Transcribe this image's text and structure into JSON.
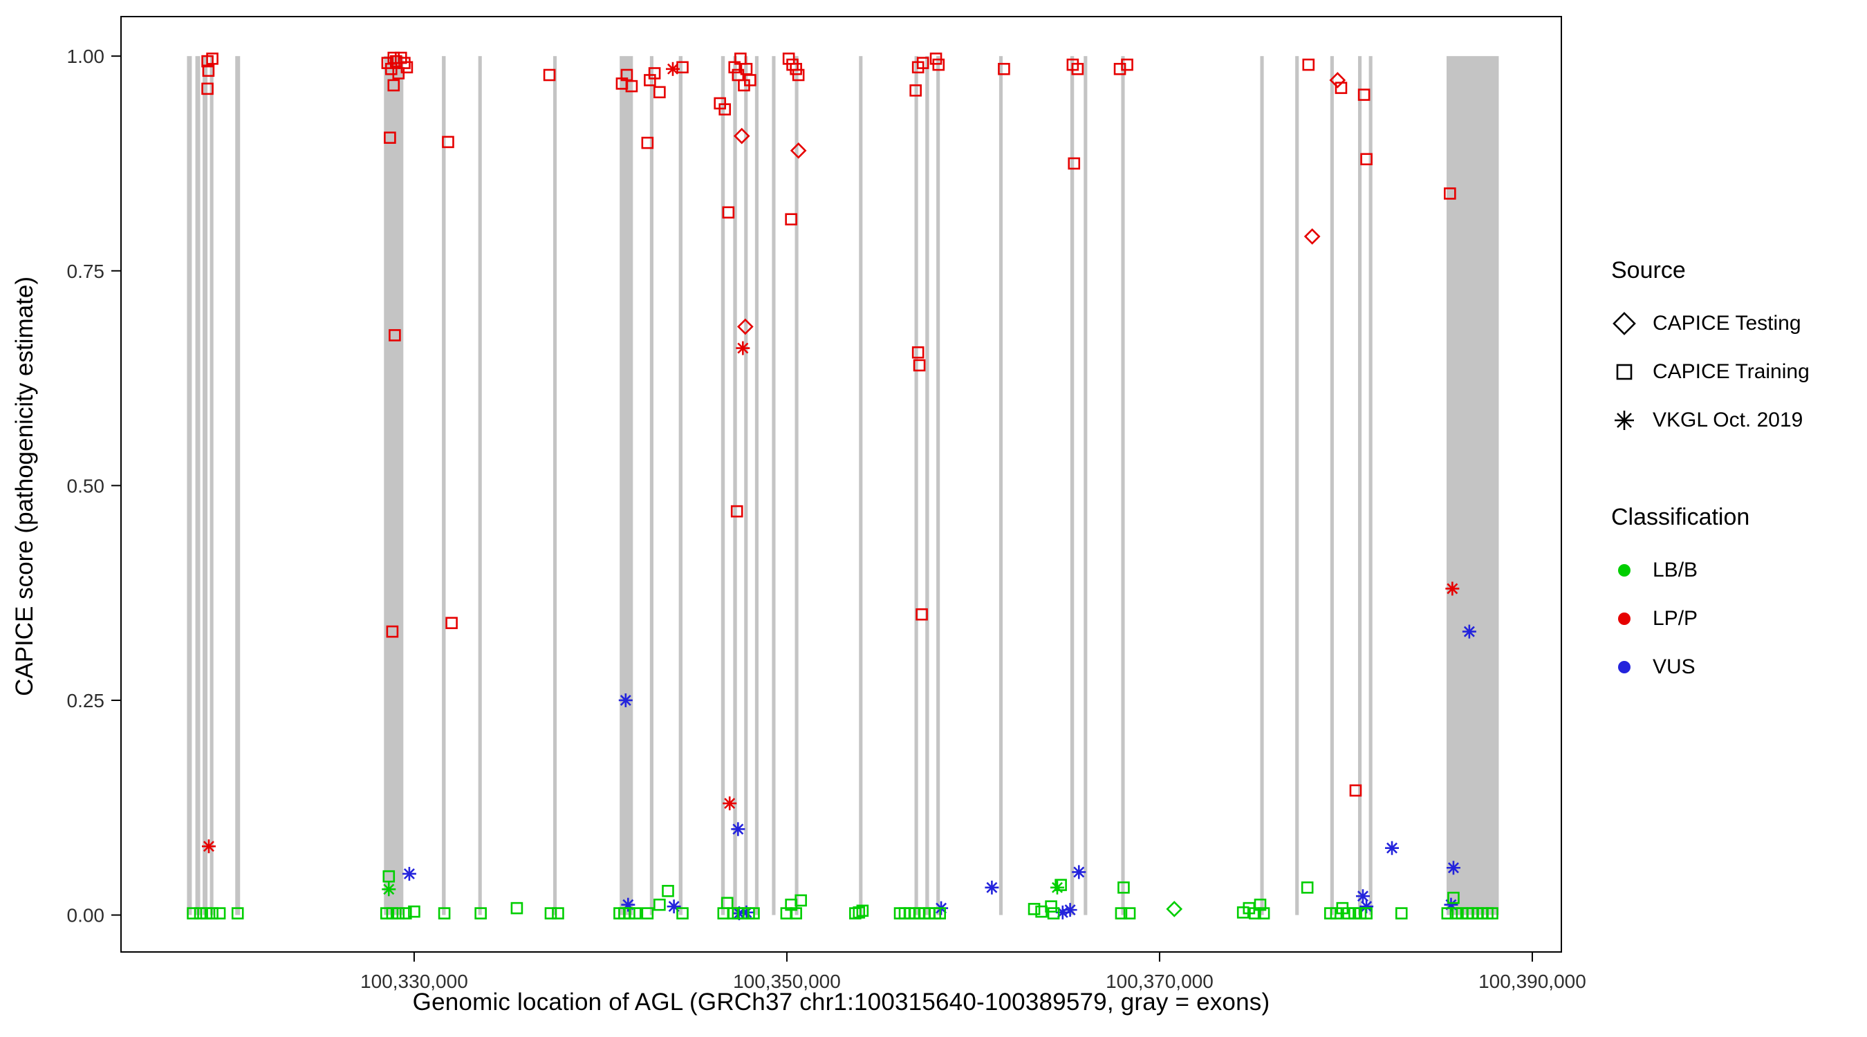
{
  "figure": {
    "x_axis_title": "Genomic location of AGL (GRCh37 chr1:100315640-100389579, gray = exons)",
    "y_axis_title": "CAPICE score (pathogenicity estimate)"
  },
  "legend": {
    "source": {
      "title": "Source",
      "items": [
        {
          "label": "CAPICE Testing",
          "shape": "diamond"
        },
        {
          "label": "CAPICE Training",
          "shape": "square"
        },
        {
          "label": "VKGL Oct. 2019",
          "shape": "asterisk"
        }
      ]
    },
    "classification": {
      "title": "Classification",
      "items": [
        {
          "label": "LB/B",
          "key": "lbb"
        },
        {
          "label": "LP/P",
          "key": "lpp"
        },
        {
          "label": "VUS",
          "key": "vus"
        }
      ]
    }
  },
  "chart_data": {
    "type": "scatter",
    "title": "",
    "xlabel": "Genomic location of AGL (GRCh37 chr1:100315640-100389579, gray = exons)",
    "ylabel": "CAPICE score (pathogenicity estimate)",
    "legend_position": "right",
    "grid": false,
    "x_domain": [
      100314270,
      100391560
    ],
    "y_domain": [
      -0.043,
      1.046
    ],
    "x_ticks": [
      {
        "value": 100330000,
        "label": "100,330,000"
      },
      {
        "value": 100350000,
        "label": "100,350,000"
      },
      {
        "value": 100370000,
        "label": "100,370,000"
      },
      {
        "value": 100390000,
        "label": "100,390,000"
      }
    ],
    "y_ticks": [
      {
        "value": 0.0,
        "label": "0.00"
      },
      {
        "value": 0.25,
        "label": "0.25"
      },
      {
        "value": 0.5,
        "label": "0.50"
      },
      {
        "value": 0.75,
        "label": "0.75"
      },
      {
        "value": 1.0,
        "label": "1.00"
      }
    ],
    "exon_color": "#c4c4c4",
    "colors": {
      "lbb": "#00ce00",
      "lpp": "#e60000",
      "vus": "#2323dc"
    },
    "source_shapes": {
      "testing": "diamond",
      "training": "square",
      "vkgl": "asterisk"
    },
    "exons": [
      [
        100317810,
        100318070
      ],
      [
        100318260,
        100318520
      ],
      [
        100318650,
        100318910
      ],
      [
        100319040,
        100319230
      ],
      [
        100320400,
        100320660
      ],
      [
        100328380,
        100329420
      ],
      [
        100331490,
        100331690
      ],
      [
        100333440,
        100333630
      ],
      [
        100337460,
        100337650
      ],
      [
        100341030,
        100341740
      ],
      [
        100342650,
        100342840
      ],
      [
        100344200,
        100344400
      ],
      [
        100346470,
        100346670
      ],
      [
        100347120,
        100347320
      ],
      [
        100347710,
        100347900
      ],
      [
        100348290,
        100348480
      ],
      [
        100349200,
        100349390
      ],
      [
        100350430,
        100350620
      ],
      [
        100353870,
        100354060
      ],
      [
        100356850,
        100357040
      ],
      [
        100357430,
        100357630
      ],
      [
        100358020,
        100358210
      ],
      [
        100361390,
        100361580
      ],
      [
        100365210,
        100365410
      ],
      [
        100365930,
        100366120
      ],
      [
        100367940,
        100368130
      ],
      [
        100375400,
        100375590
      ],
      [
        100377280,
        100377470
      ],
      [
        100379160,
        100379350
      ],
      [
        100380650,
        100380840
      ],
      [
        100381230,
        100381420
      ],
      [
        100385400,
        100388200
      ]
    ],
    "points": [
      [
        100318910,
        0.994,
        "training",
        "lpp"
      ],
      [
        100319170,
        0.997,
        "training",
        "lpp"
      ],
      [
        100318960,
        0.983,
        "training",
        "lpp"
      ],
      [
        100318910,
        0.962,
        "training",
        "lpp"
      ],
      [
        100328570,
        0.992,
        "training",
        "lpp"
      ],
      [
        100328770,
        0.985,
        "training",
        "lpp"
      ],
      [
        100328900,
        0.998,
        "training",
        "lpp"
      ],
      [
        100329030,
        0.994,
        "training",
        "lpp"
      ],
      [
        100329160,
        0.98,
        "training",
        "lpp"
      ],
      [
        100329290,
        0.998,
        "training",
        "lpp"
      ],
      [
        100329480,
        0.992,
        "training",
        "lpp"
      ],
      [
        100329610,
        0.987,
        "training",
        "lpp"
      ],
      [
        100328900,
        0.966,
        "training",
        "lpp"
      ],
      [
        100328700,
        0.905,
        "training",
        "lpp"
      ],
      [
        100328960,
        0.675,
        "training",
        "lpp"
      ],
      [
        100328830,
        0.33,
        "training",
        "lpp"
      ],
      [
        100331820,
        0.9,
        "training",
        "lpp"
      ],
      [
        100332010,
        0.34,
        "training",
        "lpp"
      ],
      [
        100337260,
        0.978,
        "training",
        "lpp"
      ],
      [
        100341150,
        0.968,
        "training",
        "lpp"
      ],
      [
        100341410,
        0.978,
        "training",
        "lpp"
      ],
      [
        100341670,
        0.965,
        "training",
        "lpp"
      ],
      [
        100342650,
        0.972,
        "training",
        "lpp"
      ],
      [
        100342900,
        0.98,
        "training",
        "lpp"
      ],
      [
        100342520,
        0.899,
        "training",
        "lpp"
      ],
      [
        100343170,
        0.958,
        "training",
        "lpp"
      ],
      [
        100344400,
        0.987,
        "training",
        "lpp"
      ],
      [
        100346410,
        0.945,
        "training",
        "lpp"
      ],
      [
        100346670,
        0.938,
        "training",
        "lpp"
      ],
      [
        100346860,
        0.818,
        "training",
        "lpp"
      ],
      [
        100347190,
        0.987,
        "training",
        "lpp"
      ],
      [
        100347380,
        0.978,
        "training",
        "lpp"
      ],
      [
        100347510,
        0.997,
        "training",
        "lpp"
      ],
      [
        100347700,
        0.966,
        "training",
        "lpp"
      ],
      [
        100347830,
        0.985,
        "training",
        "lpp"
      ],
      [
        100348030,
        0.972,
        "training",
        "lpp"
      ],
      [
        100347320,
        0.47,
        "training",
        "lpp"
      ],
      [
        100350100,
        0.997,
        "training",
        "lpp"
      ],
      [
        100350300,
        0.99,
        "training",
        "lpp"
      ],
      [
        100350490,
        0.985,
        "training",
        "lpp"
      ],
      [
        100350620,
        0.978,
        "training",
        "lpp"
      ],
      [
        100350230,
        0.81,
        "training",
        "lpp"
      ],
      [
        100356910,
        0.96,
        "training",
        "lpp"
      ],
      [
        100357040,
        0.987,
        "training",
        "lpp"
      ],
      [
        100357300,
        0.992,
        "training",
        "lpp"
      ],
      [
        100358000,
        0.997,
        "training",
        "lpp"
      ],
      [
        100358140,
        0.99,
        "training",
        "lpp"
      ],
      [
        100357040,
        0.655,
        "training",
        "lpp"
      ],
      [
        100357110,
        0.64,
        "training",
        "lpp"
      ],
      [
        100357240,
        0.35,
        "training",
        "lpp"
      ],
      [
        100361650,
        0.985,
        "training",
        "lpp"
      ],
      [
        100365340,
        0.99,
        "training",
        "lpp"
      ],
      [
        100365600,
        0.985,
        "training",
        "lpp"
      ],
      [
        100365410,
        0.875,
        "training",
        "lpp"
      ],
      [
        100367870,
        0.985,
        "training",
        "lpp"
      ],
      [
        100368260,
        0.99,
        "training",
        "lpp"
      ],
      [
        100377990,
        0.99,
        "training",
        "lpp"
      ],
      [
        100379740,
        0.963,
        "training",
        "lpp"
      ],
      [
        100380970,
        0.955,
        "training",
        "lpp"
      ],
      [
        100381100,
        0.88,
        "training",
        "lpp"
      ],
      [
        100380520,
        0.145,
        "training",
        "lpp"
      ],
      [
        100385580,
        0.84,
        "training",
        "lpp"
      ],
      [
        100347580,
        0.907,
        "testing",
        "lpp"
      ],
      [
        100347770,
        0.685,
        "testing",
        "lpp"
      ],
      [
        100350620,
        0.89,
        "testing",
        "lpp"
      ],
      [
        100378190,
        0.79,
        "testing",
        "lpp"
      ],
      [
        100379550,
        0.972,
        "testing",
        "lpp"
      ],
      [
        100318980,
        0.08,
        "vkgl",
        "lpp"
      ],
      [
        100343880,
        0.985,
        "vkgl",
        "lpp"
      ],
      [
        100346930,
        0.13,
        "vkgl",
        "lpp"
      ],
      [
        100347640,
        0.66,
        "vkgl",
        "lpp"
      ],
      [
        100385710,
        0.38,
        "vkgl",
        "lpp"
      ],
      [
        100329740,
        0.048,
        "vkgl",
        "vus"
      ],
      [
        100341350,
        0.25,
        "vkgl",
        "vus"
      ],
      [
        100341480,
        0.012,
        "vkgl",
        "vus"
      ],
      [
        100343940,
        0.01,
        "vkgl",
        "vus"
      ],
      [
        100347380,
        0.1,
        "vkgl",
        "vus"
      ],
      [
        100347440,
        0.002,
        "vkgl",
        "vus"
      ],
      [
        100347830,
        0.003,
        "vkgl",
        "vus"
      ],
      [
        100358280,
        0.008,
        "vkgl",
        "vus"
      ],
      [
        100361000,
        0.032,
        "vkgl",
        "vus"
      ],
      [
        100364800,
        0.003,
        "vkgl",
        "vus"
      ],
      [
        100365200,
        0.006,
        "vkgl",
        "vus"
      ],
      [
        100365670,
        0.05,
        "vkgl",
        "vus"
      ],
      [
        100380910,
        0.022,
        "vkgl",
        "vus"
      ],
      [
        100381100,
        0.01,
        "vkgl",
        "vus"
      ],
      [
        100382470,
        0.078,
        "vkgl",
        "vus"
      ],
      [
        100385640,
        0.012,
        "vkgl",
        "vus"
      ],
      [
        100385770,
        0.055,
        "vkgl",
        "vus"
      ],
      [
        100386620,
        0.33,
        "vkgl",
        "vus"
      ],
      [
        100328640,
        0.03,
        "vkgl",
        "lbb"
      ],
      [
        100364510,
        0.032,
        "vkgl",
        "lbb"
      ],
      [
        100370790,
        0.007,
        "testing",
        "lbb"
      ],
      [
        100318130,
        0.002,
        "training",
        "lbb"
      ],
      [
        100318520,
        0.002,
        "training",
        "lbb"
      ],
      [
        100318850,
        0.002,
        "training",
        "lbb"
      ],
      [
        100319170,
        0.002,
        "training",
        "lbb"
      ],
      [
        100319560,
        0.002,
        "training",
        "lbb"
      ],
      [
        100320530,
        0.002,
        "training",
        "lbb"
      ],
      [
        100328510,
        0.002,
        "training",
        "lbb"
      ],
      [
        100328640,
        0.045,
        "training",
        "lbb"
      ],
      [
        100328830,
        0.002,
        "training",
        "lbb"
      ],
      [
        100329160,
        0.002,
        "training",
        "lbb"
      ],
      [
        100329550,
        0.002,
        "training",
        "lbb"
      ],
      [
        100330000,
        0.004,
        "training",
        "lbb"
      ],
      [
        100331620,
        0.002,
        "training",
        "lbb"
      ],
      [
        100333570,
        0.002,
        "training",
        "lbb"
      ],
      [
        100335510,
        0.008,
        "training",
        "lbb"
      ],
      [
        100337330,
        0.002,
        "training",
        "lbb"
      ],
      [
        100337720,
        0.002,
        "training",
        "lbb"
      ],
      [
        100341020,
        0.002,
        "training",
        "lbb"
      ],
      [
        100341280,
        0.002,
        "training",
        "lbb"
      ],
      [
        100341540,
        0.002,
        "training",
        "lbb"
      ],
      [
        100341870,
        0.002,
        "training",
        "lbb"
      ],
      [
        100342520,
        0.002,
        "training",
        "lbb"
      ],
      [
        100343170,
        0.012,
        "training",
        "lbb"
      ],
      [
        100343620,
        0.028,
        "training",
        "lbb"
      ],
      [
        100344400,
        0.002,
        "training",
        "lbb"
      ],
      [
        100346600,
        0.002,
        "training",
        "lbb"
      ],
      [
        100346800,
        0.014,
        "training",
        "lbb"
      ],
      [
        100347120,
        0.002,
        "training",
        "lbb"
      ],
      [
        100347380,
        0.002,
        "training",
        "lbb"
      ],
      [
        100347640,
        0.002,
        "training",
        "lbb"
      ],
      [
        100347960,
        0.002,
        "training",
        "lbb"
      ],
      [
        100348220,
        0.002,
        "training",
        "lbb"
      ],
      [
        100349980,
        0.002,
        "training",
        "lbb"
      ],
      [
        100350230,
        0.012,
        "training",
        "lbb"
      ],
      [
        100350490,
        0.002,
        "training",
        "lbb"
      ],
      [
        100350750,
        0.017,
        "training",
        "lbb"
      ],
      [
        100353670,
        0.002,
        "training",
        "lbb"
      ],
      [
        100353870,
        0.003,
        "training",
        "lbb"
      ],
      [
        100354060,
        0.005,
        "training",
        "lbb"
      ],
      [
        100356070,
        0.002,
        "training",
        "lbb"
      ],
      [
        100356330,
        0.002,
        "training",
        "lbb"
      ],
      [
        100356590,
        0.002,
        "training",
        "lbb"
      ],
      [
        100356850,
        0.002,
        "training",
        "lbb"
      ],
      [
        100357110,
        0.002,
        "training",
        "lbb"
      ],
      [
        100357370,
        0.002,
        "training",
        "lbb"
      ],
      [
        100357630,
        0.002,
        "training",
        "lbb"
      ],
      [
        100357950,
        0.002,
        "training",
        "lbb"
      ],
      [
        100358210,
        0.002,
        "training",
        "lbb"
      ],
      [
        100363270,
        0.007,
        "training",
        "lbb"
      ],
      [
        100363660,
        0.004,
        "training",
        "lbb"
      ],
      [
        100364180,
        0.01,
        "training",
        "lbb"
      ],
      [
        100364310,
        0.002,
        "training",
        "lbb"
      ],
      [
        100364700,
        0.035,
        "training",
        "lbb"
      ],
      [
        100367940,
        0.002,
        "training",
        "lbb"
      ],
      [
        100368070,
        0.032,
        "training",
        "lbb"
      ],
      [
        100368390,
        0.002,
        "training",
        "lbb"
      ],
      [
        100374480,
        0.003,
        "training",
        "lbb"
      ],
      [
        100374800,
        0.008,
        "training",
        "lbb"
      ],
      [
        100375120,
        0.002,
        "training",
        "lbb"
      ],
      [
        100375400,
        0.012,
        "training",
        "lbb"
      ],
      [
        100375590,
        0.002,
        "training",
        "lbb"
      ],
      [
        100377930,
        0.032,
        "training",
        "lbb"
      ],
      [
        100379160,
        0.002,
        "training",
        "lbb"
      ],
      [
        100379480,
        0.002,
        "training",
        "lbb"
      ],
      [
        100379810,
        0.008,
        "training",
        "lbb"
      ],
      [
        100380130,
        0.002,
        "training",
        "lbb"
      ],
      [
        100380460,
        0.002,
        "training",
        "lbb"
      ],
      [
        100380780,
        0.002,
        "training",
        "lbb"
      ],
      [
        100381100,
        0.002,
        "training",
        "lbb"
      ],
      [
        100382980,
        0.002,
        "training",
        "lbb"
      ],
      [
        100385450,
        0.002,
        "training",
        "lbb"
      ],
      [
        100385770,
        0.02,
        "training",
        "lbb"
      ],
      [
        100385900,
        0.002,
        "training",
        "lbb"
      ],
      [
        100386230,
        0.002,
        "training",
        "lbb"
      ],
      [
        100386550,
        0.002,
        "training",
        "lbb"
      ],
      [
        100386810,
        0.002,
        "training",
        "lbb"
      ],
      [
        100387070,
        0.002,
        "training",
        "lbb"
      ],
      [
        100387330,
        0.002,
        "training",
        "lbb"
      ],
      [
        100387590,
        0.002,
        "training",
        "lbb"
      ],
      [
        100387850,
        0.002,
        "training",
        "lbb"
      ]
    ]
  }
}
